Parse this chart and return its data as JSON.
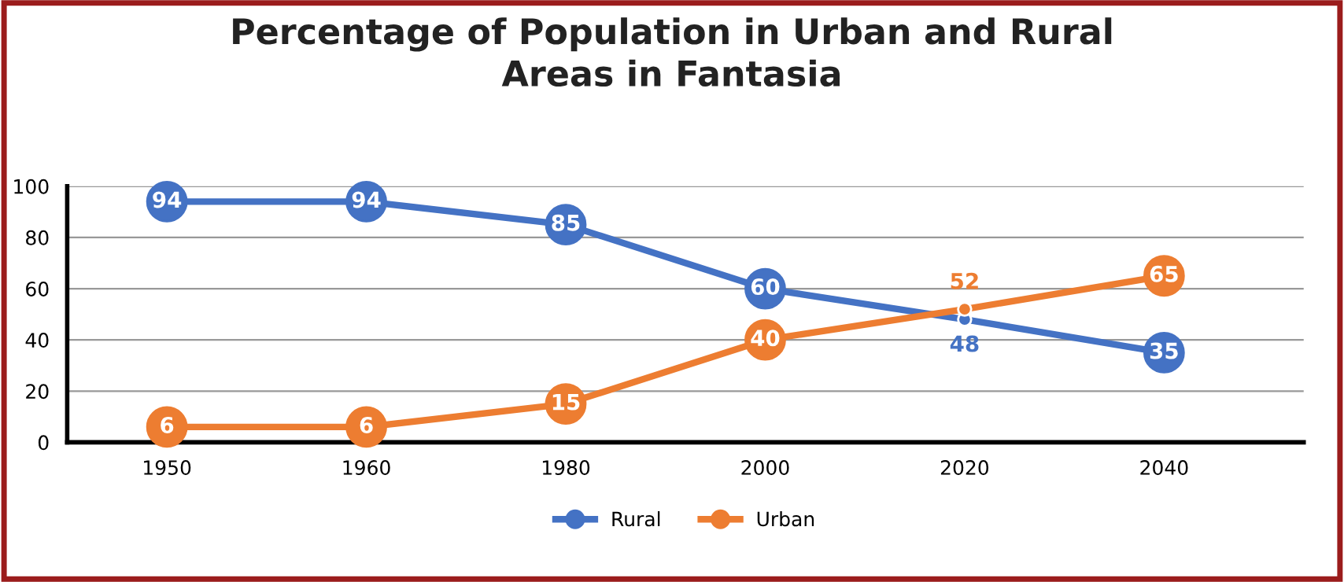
{
  "chart_data": {
    "type": "line",
    "title": "Percentage of Population in Urban and Rural\nAreas in Fantasia",
    "categories": [
      "1950",
      "1960",
      "1980",
      "2000",
      "2020",
      "2040"
    ],
    "series": [
      {
        "name": "Rural",
        "color": "#4472c4",
        "values": [
          94,
          94,
          85,
          60,
          48,
          35
        ]
      },
      {
        "name": "Urban",
        "color": "#ed7d31",
        "values": [
          6,
          6,
          15,
          40,
          52,
          65
        ]
      }
    ],
    "ylim": [
      0,
      100
    ],
    "yticks": [
      0,
      20,
      40,
      60,
      80,
      100
    ],
    "grid": "y",
    "legend": "bottom",
    "marker": "circle",
    "line_style": "solid",
    "data_labels": true
  }
}
